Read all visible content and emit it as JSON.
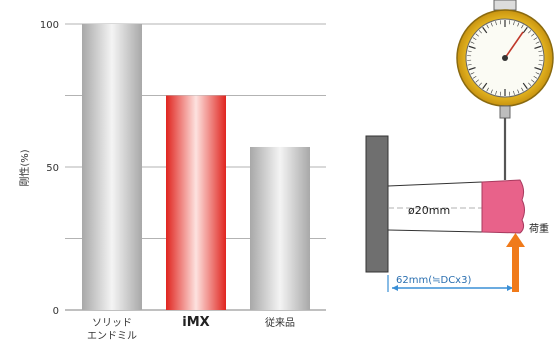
{
  "chart_data": {
    "type": "bar",
    "ylabel": "剛性(%)",
    "ylim": [
      0,
      100
    ],
    "yticks": [
      0,
      50,
      100
    ],
    "grid": true,
    "categories": [
      {
        "label_lines": [
          "ソリッド",
          "エンドミル"
        ],
        "bold": false
      },
      {
        "label_lines": [
          "iMX"
        ],
        "bold": true
      },
      {
        "label_lines": [
          "従来品"
        ],
        "bold": false
      }
    ],
    "values": [
      100,
      75,
      57
    ],
    "bar_styles": [
      "silver",
      "red",
      "silver"
    ]
  },
  "diagram": {
    "diameter_label": "ø20mm",
    "length_label": "62mm(≒DCx3)",
    "load_label": "荷重"
  },
  "colors": {
    "red": "#e8322c",
    "silver": "#c9c9c9",
    "orange": "#f07a1a",
    "blue": "#3a8fd6",
    "pink": "#e8628a",
    "gold": "#e7b217"
  }
}
